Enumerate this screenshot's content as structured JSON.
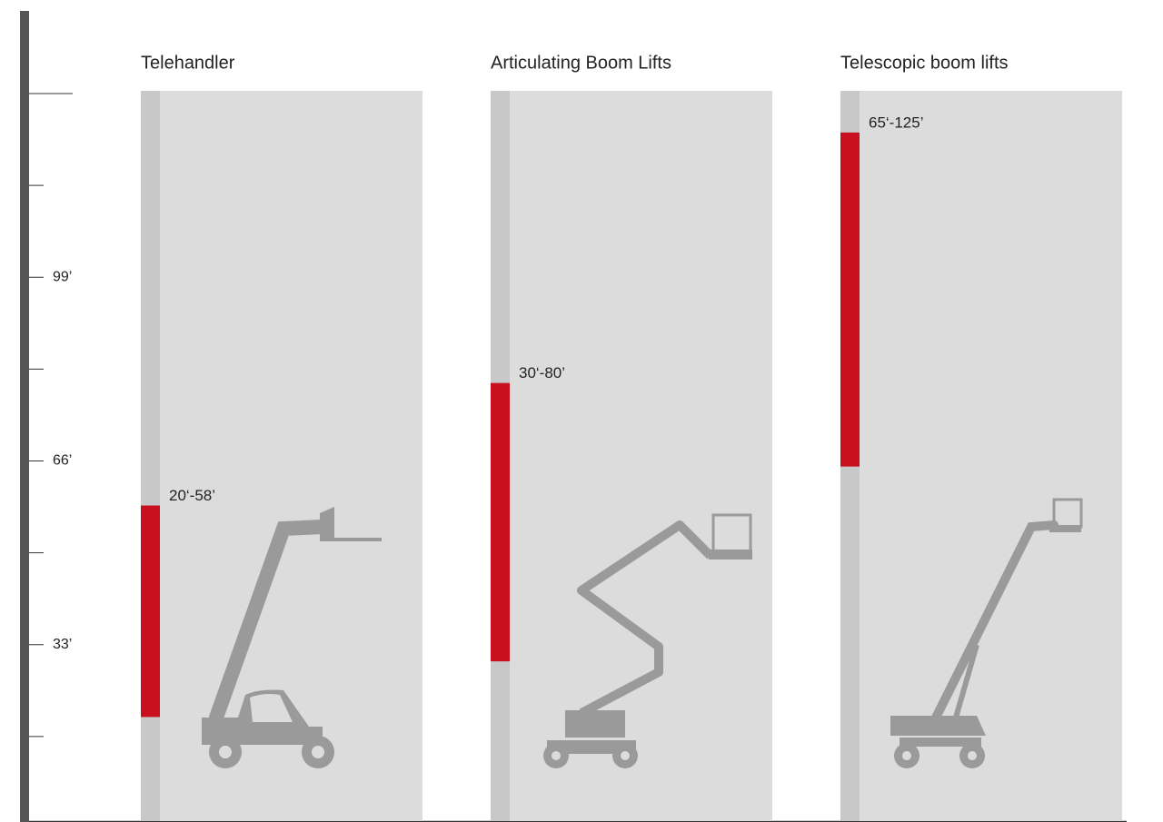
{
  "chart_data": {
    "type": "range-bar",
    "categories": [
      "Telehandler",
      "Articulating Boom Lifts",
      "Telescopic boom lifts"
    ],
    "values": [
      [
        20,
        58
      ],
      [
        30,
        80
      ],
      [
        65,
        125
      ]
    ],
    "value_labels": [
      "20‘-58’",
      "30‘-80’",
      "65‘-125’"
    ],
    "color": "#c8101e",
    "ylim": [
      0,
      132
    ],
    "yticks": [
      {
        "value": 33,
        "label": "33’"
      },
      {
        "value": 66,
        "label": "66’"
      },
      {
        "value": 99,
        "label": "99’"
      }
    ],
    "minor_yticks": [
      16.5,
      49.5,
      82.5,
      115.5
    ]
  }
}
